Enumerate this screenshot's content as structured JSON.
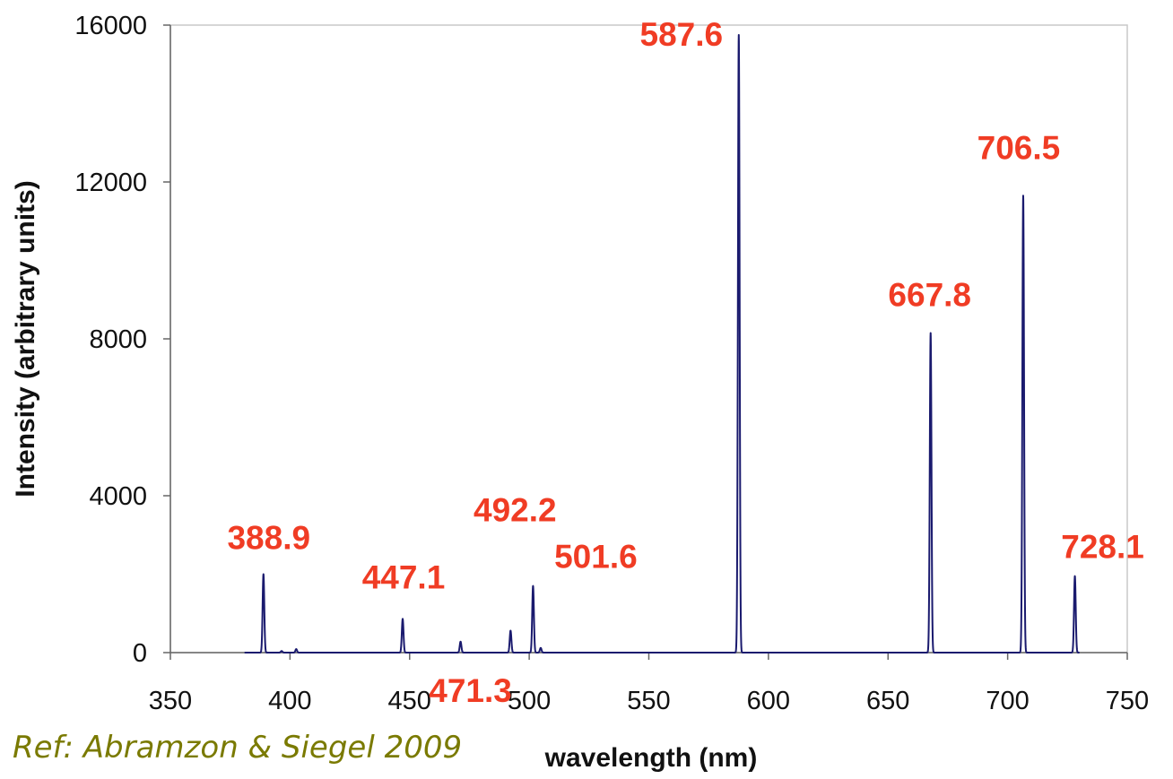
{
  "reference_note": "Ref: Abramzon & Siegel 2009",
  "colors": {
    "line": "#1a1a6e",
    "peak_label": "#f03c24",
    "axis": "#666666",
    "reference_note": "#7a7a00"
  },
  "chart_data": {
    "type": "line",
    "title": "",
    "xlabel": "wavelength (nm)",
    "ylabel": "Intensity (arbitrary units)",
    "xlim": [
      350,
      750
    ],
    "ylim": [
      0,
      16000
    ],
    "x_ticks": [
      350,
      400,
      450,
      500,
      550,
      600,
      650,
      700,
      750
    ],
    "y_ticks": [
      0,
      4000,
      8000,
      12000,
      16000
    ],
    "grid": false,
    "legend": "none",
    "x_range_of_data": [
      381,
      730
    ],
    "peaks": [
      {
        "x": 388.9,
        "y": 2000
      },
      {
        "x": 396.5,
        "y": 40
      },
      {
        "x": 402.6,
        "y": 90
      },
      {
        "x": 447.1,
        "y": 860
      },
      {
        "x": 471.3,
        "y": 280
      },
      {
        "x": 492.2,
        "y": 560
      },
      {
        "x": 501.6,
        "y": 1700
      },
      {
        "x": 504.8,
        "y": 120
      },
      {
        "x": 587.6,
        "y": 15750
      },
      {
        "x": 667.8,
        "y": 8150
      },
      {
        "x": 706.5,
        "y": 11650
      },
      {
        "x": 728.1,
        "y": 1950
      }
    ],
    "annotations": [
      {
        "text": "388.9",
        "x": 388.9,
        "y": 2000
      },
      {
        "text": "447.1",
        "x": 447.1,
        "y": 860
      },
      {
        "text": "471.3",
        "x": 471.3,
        "y": 280
      },
      {
        "text": "492.2",
        "x": 492.2,
        "y": 560
      },
      {
        "text": "501.6",
        "x": 501.6,
        "y": 1700
      },
      {
        "text": "587.6",
        "x": 587.6,
        "y": 15750
      },
      {
        "text": "667.8",
        "x": 667.8,
        "y": 8150
      },
      {
        "text": "706.5",
        "x": 706.5,
        "y": 11650
      },
      {
        "text": "728.1",
        "x": 728.1,
        "y": 1950
      }
    ]
  }
}
